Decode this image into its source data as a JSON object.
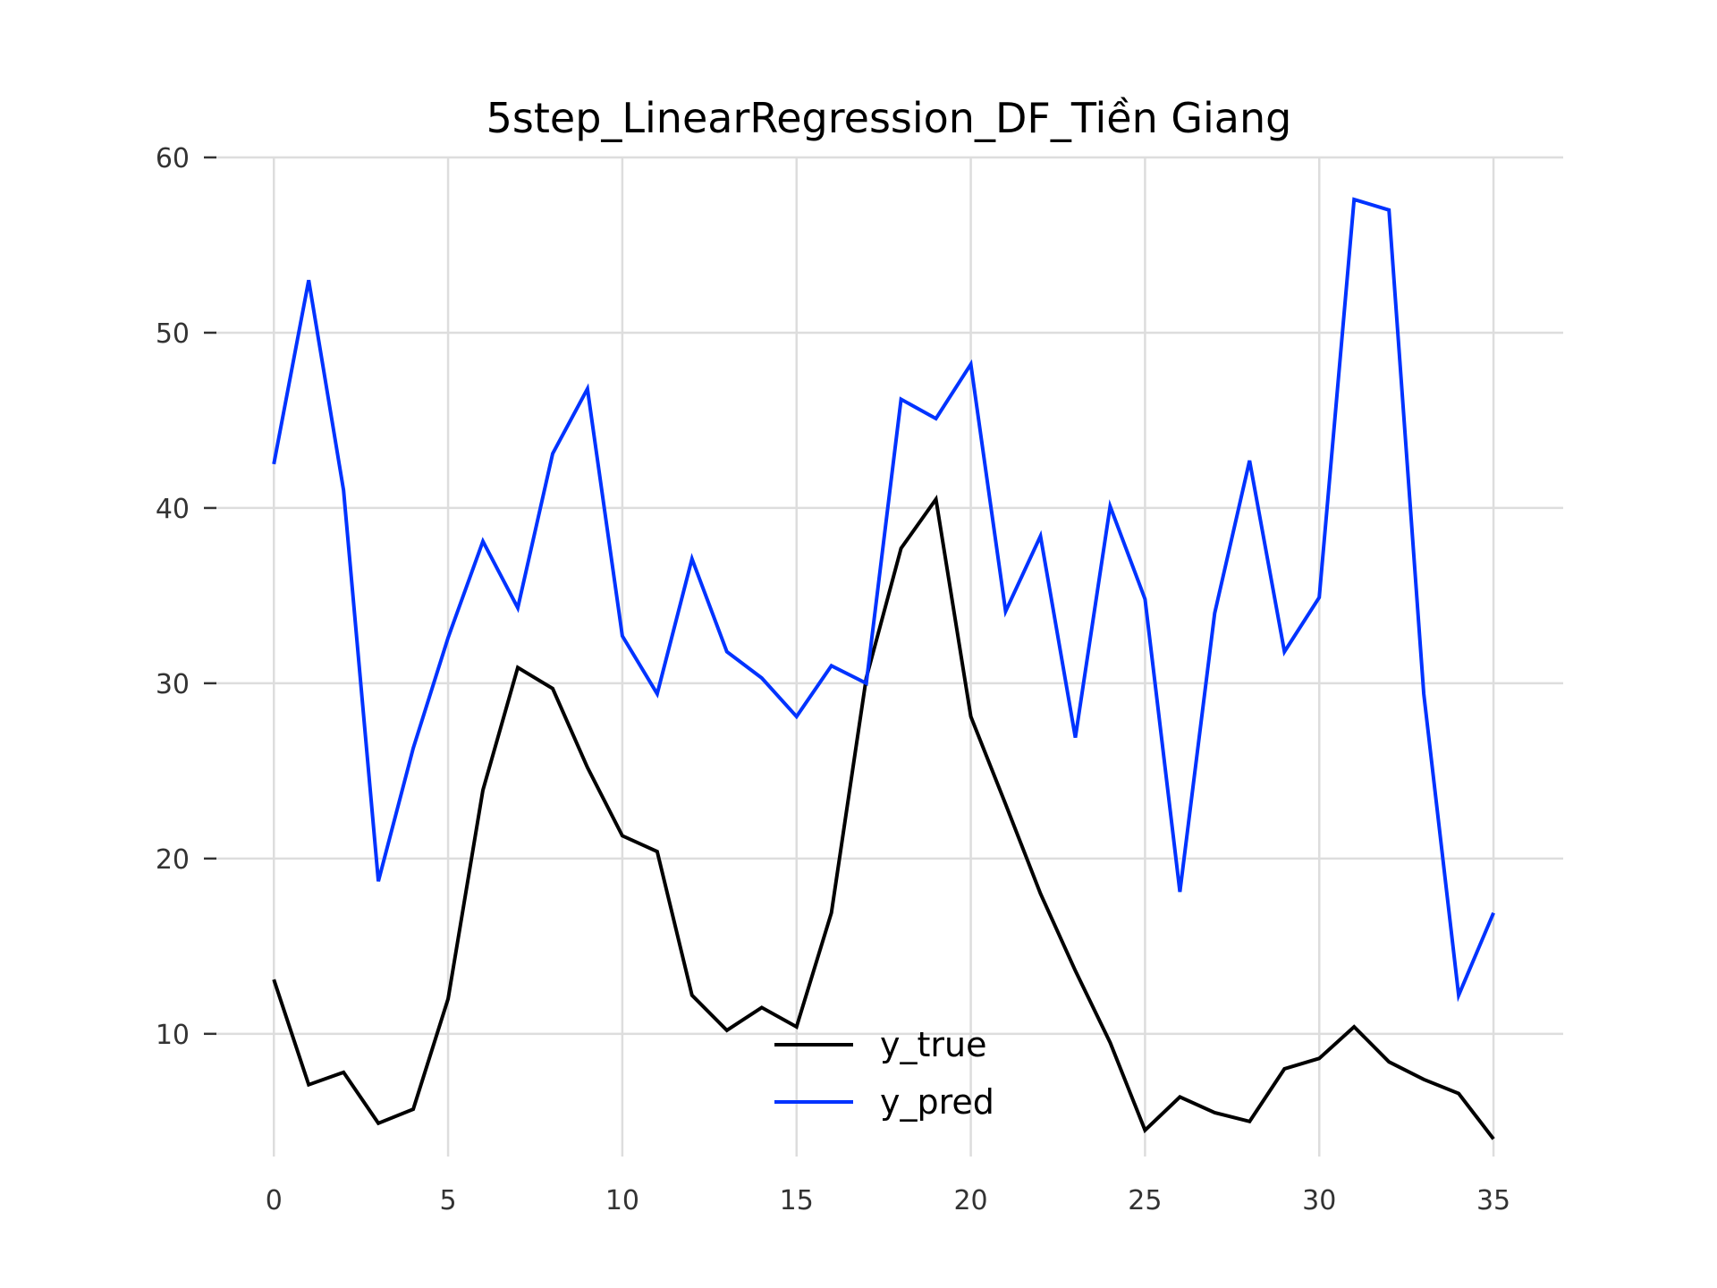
{
  "chart_data": {
    "type": "line",
    "title": "5step_LinearRegression_DF_Tiền Giang",
    "xlabel": "",
    "ylabel": "",
    "xlim": [
      0,
      35
    ],
    "ylim": [
      3.0,
      60
    ],
    "xticks": [
      0,
      5,
      10,
      15,
      20,
      25,
      30,
      35
    ],
    "yticks": [
      10,
      20,
      30,
      40,
      50,
      60
    ],
    "grid": true,
    "legend_position": "bottom-center",
    "x": [
      0,
      1,
      2,
      3,
      4,
      5,
      6,
      7,
      8,
      9,
      10,
      11,
      12,
      13,
      14,
      15,
      16,
      17,
      18,
      19,
      20,
      21,
      22,
      23,
      24,
      25,
      26,
      27,
      28,
      29,
      30,
      31,
      32,
      33,
      34,
      35
    ],
    "series": [
      {
        "name": "y_true",
        "color": "#000000",
        "values": [
          13.1,
          7.1,
          7.8,
          4.9,
          5.7,
          12.0,
          23.9,
          30.9,
          29.7,
          25.2,
          21.3,
          20.4,
          12.2,
          10.2,
          11.5,
          10.4,
          16.9,
          30.3,
          37.7,
          40.5,
          28.1,
          23.1,
          18.0,
          13.6,
          9.5,
          4.5,
          6.4,
          5.5,
          5.0,
          8.0,
          8.6,
          10.4,
          8.4,
          7.4,
          6.6,
          4.0
        ]
      },
      {
        "name": "y_pred",
        "color": "#0033ff",
        "values": [
          42.5,
          53.0,
          41.0,
          18.7,
          26.3,
          32.6,
          38.1,
          34.3,
          43.1,
          46.8,
          32.7,
          29.4,
          37.1,
          31.8,
          30.3,
          28.1,
          31.0,
          30.0,
          46.2,
          45.1,
          48.2,
          34.1,
          38.4,
          26.9,
          40.1,
          34.8,
          18.1,
          34.0,
          42.7,
          31.8,
          34.9,
          57.6,
          57.0,
          29.4,
          12.2,
          16.9
        ]
      }
    ]
  }
}
